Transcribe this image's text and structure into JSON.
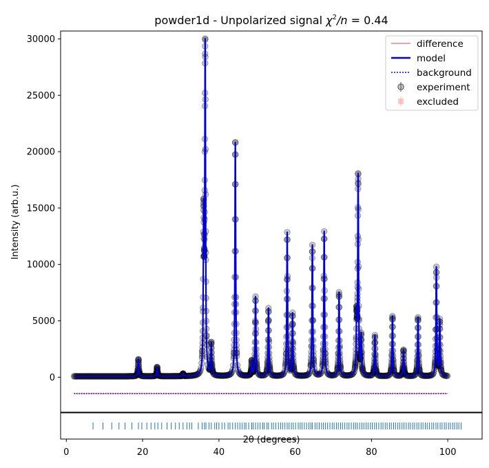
{
  "chart_data": {
    "type": "line",
    "title": "powder1d - Unpolarized signal χ²/n = 0.44",
    "title_parts": {
      "main": "powder1d - Unpolarized signal ",
      "chi": "χ",
      "sup": "2",
      "per_n": "/n",
      "eq": " = 0.44"
    },
    "xlabel": "2θ (degrees)",
    "ylabel": "Intensity (arb.u.)",
    "xlim": [
      -1.5,
      109
    ],
    "ylim": [
      -3100,
      30700
    ],
    "xticks": [
      0,
      20,
      40,
      60,
      80,
      100
    ],
    "yticks": [
      0,
      5000,
      10000,
      15000,
      20000,
      25000,
      30000
    ],
    "background_level": 80,
    "baseline_offset": -1450,
    "legend": {
      "position": "top-right",
      "entries": [
        "difference",
        "model",
        "background",
        "experiment",
        "excluded"
      ]
    },
    "colors": {
      "difference": "#ff7f7f",
      "model": "#0000dd",
      "background": "#0000ff",
      "experiment": "#000000",
      "ticks": "#1f77b4",
      "excluded_marker": "#ffb0b0"
    },
    "x_range": [
      2,
      100
    ],
    "peaks": [
      {
        "x": 18.9,
        "h": 1600
      },
      {
        "x": 23.8,
        "h": 900
      },
      {
        "x": 30.6,
        "h": 300
      },
      {
        "x": 36.0,
        "h": 13400
      },
      {
        "x": 36.4,
        "h": 28900
      },
      {
        "x": 38.0,
        "h": 2900
      },
      {
        "x": 44.3,
        "h": 20800
      },
      {
        "x": 48.6,
        "h": 1400
      },
      {
        "x": 49.6,
        "h": 7100
      },
      {
        "x": 53.0,
        "h": 6100
      },
      {
        "x": 57.9,
        "h": 12800
      },
      {
        "x": 59.3,
        "h": 5600
      },
      {
        "x": 64.5,
        "h": 11700
      },
      {
        "x": 67.6,
        "h": 12900
      },
      {
        "x": 71.5,
        "h": 7500
      },
      {
        "x": 76.1,
        "h": 4800
      },
      {
        "x": 76.5,
        "h": 17600
      },
      {
        "x": 77.3,
        "h": 3500
      },
      {
        "x": 80.9,
        "h": 3700
      },
      {
        "x": 85.5,
        "h": 5400
      },
      {
        "x": 88.4,
        "h": 2400
      },
      {
        "x": 92.2,
        "h": 5300
      },
      {
        "x": 97.0,
        "h": 9700
      },
      {
        "x": 97.9,
        "h": 5000
      }
    ],
    "reflection_ticks": [
      7.0,
      9.6,
      11.9,
      13.8,
      15.4,
      17.2,
      18.9,
      19.8,
      21.1,
      22.2,
      23.2,
      24.0,
      25.0,
      26.4,
      27.5,
      28.6,
      29.6,
      30.6,
      31.6,
      32.3,
      32.9,
      34.6,
      35.6,
      36.2,
      36.6,
      37.4,
      38.0,
      38.9,
      39.4,
      40.0,
      40.8,
      41.5,
      42.4,
      42.9,
      43.6,
      44.3,
      44.9,
      45.5,
      46.1,
      46.7,
      47.1,
      47.8,
      48.6,
      49.0,
      49.6,
      50.2,
      50.8,
      51.5,
      51.9,
      52.6,
      53.0,
      53.8,
      54.3,
      54.9,
      55.6,
      56.2,
      56.7,
      57.3,
      57.9,
      58.4,
      59.0,
      59.5,
      60.1,
      60.8,
      61.3,
      61.8,
      62.4,
      63.0,
      63.6,
      64.1,
      64.5,
      65.2,
      65.7,
      66.3,
      66.9,
      67.4,
      67.9,
      68.5,
      69.1,
      69.7,
      70.2,
      70.8,
      71.3,
      71.9,
      72.4,
      73.0,
      73.6,
      74.1,
      74.7,
      75.3,
      75.8,
      76.3,
      76.9,
      77.5,
      78.0,
      78.6,
      79.1,
      79.7,
      80.2,
      80.8,
      81.3,
      81.9,
      82.5,
      83.0,
      83.6,
      84.1,
      84.7,
      85.2,
      85.8,
      86.3,
      86.9,
      87.4,
      88.0,
      88.5,
      89.1,
      89.7,
      90.2,
      90.8,
      91.3,
      91.9,
      92.4,
      93.0,
      93.5,
      94.1,
      94.6,
      95.2,
      95.8,
      96.3,
      96.9,
      97.4,
      98.0,
      98.5,
      99.1,
      99.6,
      100.2,
      100.7,
      101.3,
      101.8,
      102.4,
      102.9,
      103.5
    ]
  }
}
